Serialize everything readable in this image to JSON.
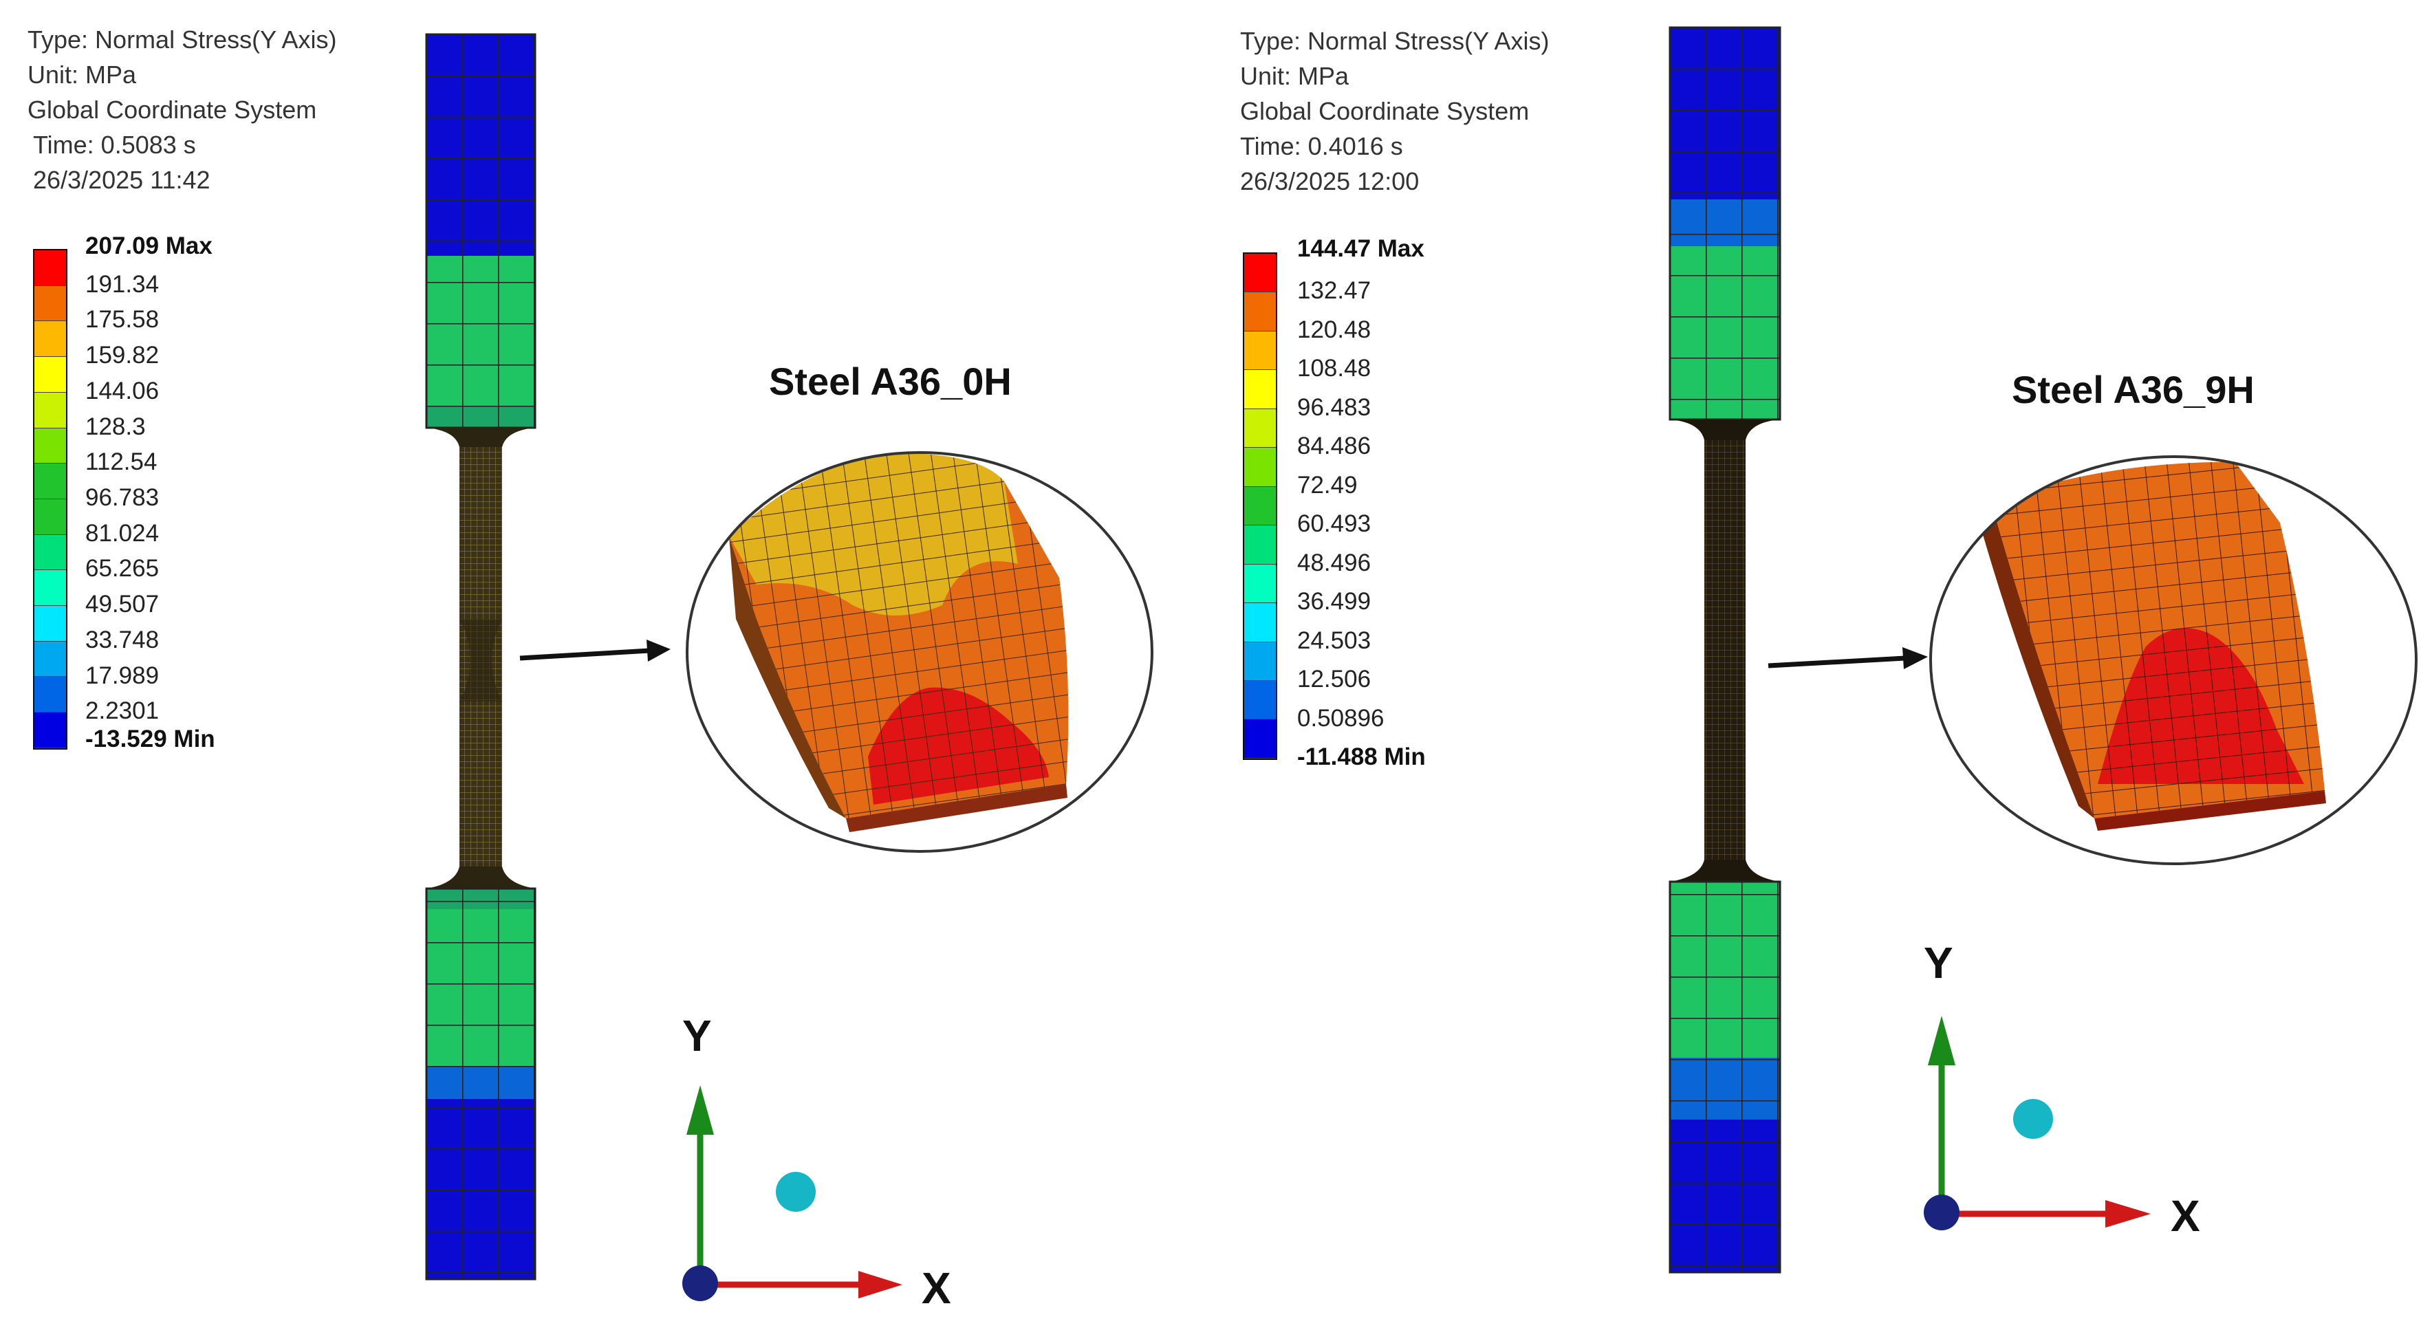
{
  "colors": {
    "legend": [
      "#ff0000",
      "#f26b00",
      "#ffb800",
      "#ffff00",
      "#cbf200",
      "#7be300",
      "#21c42c",
      "#00e07a",
      "#00ffbf",
      "#00e7ff",
      "#00a8f0",
      "#0066e6",
      "#0000e0"
    ],
    "blue_region": "#0a0ad2",
    "green_region": "#1fc463",
    "mesh_line": "#222222",
    "neck": "#3a3118",
    "zoom_yellow": "#e1b21c",
    "zoom_orange": "#e46a16",
    "zoom_red": "#e01414",
    "axis_y": "#1a8a1a",
    "axis_x": "#d01818",
    "origin_dot": "#1a237e",
    "probe_dot": "#16b6c6"
  },
  "left": {
    "info": [
      "Type: Normal Stress(Y Axis)",
      "Unit: MPa",
      "Global Coordinate System",
      "Time: 0.5083 s",
      "26/3/2025 11:42"
    ],
    "legend_max": "207.09 Max",
    "legend_values": [
      "191.34",
      "175.58",
      "159.82",
      "144.06",
      "128.3",
      "112.54",
      "96.783",
      "81.024",
      "65.265",
      "49.507",
      "33.748",
      "17.989",
      "2.2301"
    ],
    "legend_min": "-13.529 Min",
    "specimen_title": "Steel A36_0H",
    "axis_y_label": "Y",
    "axis_x_label": "X"
  },
  "right": {
    "info": [
      "Type: Normal Stress(Y Axis)",
      "Unit: MPa",
      "Global Coordinate System",
      "Time: 0.4016 s",
      "26/3/2025 12:00"
    ],
    "legend_max": "144.47 Max",
    "legend_values": [
      "132.47",
      "120.48",
      "108.48",
      "96.483",
      "84.486",
      "72.49",
      "60.493",
      "48.496",
      "36.499",
      "24.503",
      "12.506",
      "0.50896"
    ],
    "legend_min": "-11.488 Min",
    "specimen_title": "Steel A36_9H",
    "axis_y_label": "Y",
    "axis_x_label": "X"
  }
}
